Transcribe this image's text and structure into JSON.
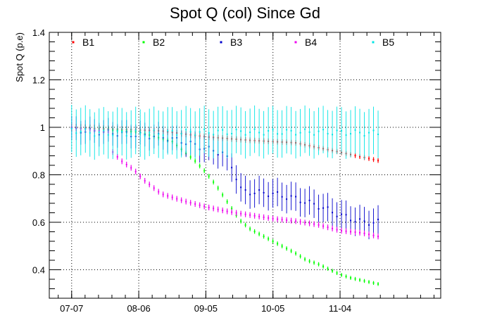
{
  "chart_data": {
    "type": "scatter",
    "title": "Spot Q (col) Since Gd",
    "xlabel": "",
    "ylabel": "Spot Q (p.e)",
    "xlim": [
      "2011-06-27",
      "2011-12-19"
    ],
    "ylim": [
      0.28,
      1.4
    ],
    "x_ticks": [
      {
        "label": "07-07",
        "date": "2011-07-07"
      },
      {
        "label": "08-06",
        "date": "2011-08-06"
      },
      {
        "label": "09-05",
        "date": "2011-09-05"
      },
      {
        "label": "10-05",
        "date": "2011-10-05"
      },
      {
        "label": "11-04",
        "date": "2011-11-04"
      }
    ],
    "y_ticks": [
      {
        "label": "0.4",
        "value": 0.4
      },
      {
        "label": "0.6",
        "value": 0.6
      },
      {
        "label": "0.8",
        "value": 0.8
      },
      {
        "label": "1",
        "value": 1.0
      },
      {
        "label": "1.2",
        "value": 1.2
      },
      {
        "label": "1.4",
        "value": 1.4
      }
    ],
    "grid": true,
    "legend_position": "top",
    "x_start": "2011-07-07",
    "x_end": "2011-11-21",
    "n_points": 68,
    "series": [
      {
        "name": "B1",
        "color": "#ff0000",
        "y_knots": [
          [
            0,
            1.0
          ],
          [
            40,
            0.985
          ],
          [
            60,
            0.96
          ],
          [
            80,
            0.945
          ],
          [
            100,
            0.935
          ],
          [
            110,
            0.915
          ],
          [
            120,
            0.895
          ],
          [
            137,
            0.86
          ]
        ],
        "err_knots": [
          [
            0,
            0.015
          ],
          [
            137,
            0.01
          ]
        ]
      },
      {
        "name": "B2",
        "color": "#00ff00",
        "y_knots": [
          [
            0,
            1.0
          ],
          [
            30,
            0.98
          ],
          [
            45,
            0.94
          ],
          [
            50,
            0.9
          ],
          [
            55,
            0.86
          ],
          [
            60,
            0.81
          ],
          [
            65,
            0.75
          ],
          [
            70,
            0.68
          ],
          [
            75,
            0.61
          ],
          [
            80,
            0.57
          ],
          [
            90,
            0.52
          ],
          [
            100,
            0.47
          ],
          [
            105,
            0.44
          ],
          [
            110,
            0.425
          ],
          [
            120,
            0.38
          ],
          [
            125,
            0.365
          ],
          [
            137,
            0.34
          ]
        ],
        "err_knots": [
          [
            0,
            0.012
          ],
          [
            137,
            0.008
          ]
        ]
      },
      {
        "name": "B3",
        "color": "#0000cc",
        "y_knots": [
          [
            0,
            0.99
          ],
          [
            40,
            0.96
          ],
          [
            50,
            0.94
          ],
          [
            60,
            0.91
          ],
          [
            68,
            0.89
          ],
          [
            72,
            0.83
          ],
          [
            74,
            0.78
          ],
          [
            76,
            0.73
          ],
          [
            90,
            0.72
          ],
          [
            100,
            0.7
          ],
          [
            110,
            0.67
          ],
          [
            120,
            0.63
          ],
          [
            130,
            0.6
          ],
          [
            137,
            0.6
          ]
        ],
        "err_knots": [
          [
            0,
            0.05
          ],
          [
            40,
            0.05
          ],
          [
            70,
            0.06
          ],
          [
            137,
            0.06
          ]
        ]
      },
      {
        "name": "B4",
        "color": "#ee00ee",
        "y_knots": [
          [
            0,
            1.0
          ],
          [
            17,
            0.98
          ],
          [
            18,
            0.9
          ],
          [
            22,
            0.86
          ],
          [
            28,
            0.82
          ],
          [
            32,
            0.78
          ],
          [
            40,
            0.72
          ],
          [
            50,
            0.69
          ],
          [
            60,
            0.665
          ],
          [
            70,
            0.645
          ],
          [
            80,
            0.63
          ],
          [
            90,
            0.615
          ],
          [
            100,
            0.605
          ],
          [
            110,
            0.59
          ],
          [
            120,
            0.565
          ],
          [
            130,
            0.555
          ],
          [
            137,
            0.54
          ]
        ],
        "err_knots": [
          [
            0,
            0.012
          ],
          [
            137,
            0.012
          ]
        ]
      },
      {
        "name": "B5",
        "color": "#00e5e5",
        "y_knots": [
          [
            0,
            0.99
          ],
          [
            10,
            0.975
          ],
          [
            30,
            0.975
          ],
          [
            60,
            0.98
          ],
          [
            90,
            0.98
          ],
          [
            110,
            0.98
          ],
          [
            137,
            0.975
          ]
        ],
        "err_knots": [
          [
            0,
            0.1
          ],
          [
            137,
            0.1
          ]
        ]
      }
    ]
  },
  "legend": [
    {
      "label": "B1",
      "color": "#ff0000"
    },
    {
      "label": "B2",
      "color": "#00ff00"
    },
    {
      "label": "B3",
      "color": "#0000cc"
    },
    {
      "label": "B4",
      "color": "#ee00ee"
    },
    {
      "label": "B5",
      "color": "#00e5e5"
    }
  ]
}
